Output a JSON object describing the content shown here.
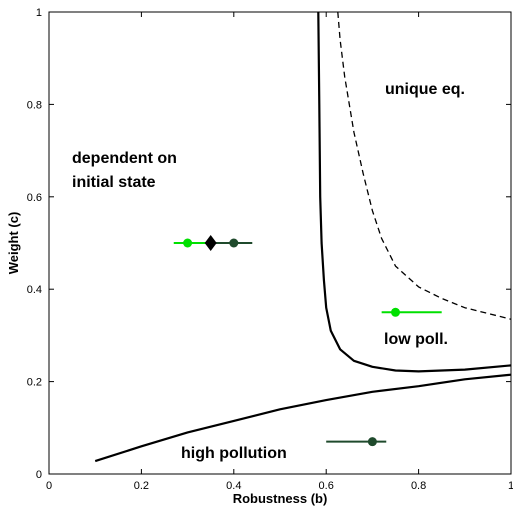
{
  "chart_data": {
    "type": "line",
    "title": "",
    "xlabel": "Robustness (b)",
    "ylabel": "Weight (c)",
    "xlim": [
      0,
      1
    ],
    "ylim": [
      0,
      1
    ],
    "xticks": [
      "0",
      "0.2",
      "0.4",
      "0.6",
      "0.8",
      "1"
    ],
    "yticks": [
      "0",
      "0.2",
      "0.4",
      "0.6",
      "0.8",
      "1"
    ],
    "grid": false,
    "legend": "none",
    "region_labels": [
      {
        "text": "dependent on",
        "x": 0.05,
        "y": 0.62
      },
      {
        "text": "initial state",
        "x": 0.05,
        "y": 0.62
      },
      {
        "text": "unique eq.",
        "x": 0.73,
        "y": 0.82
      },
      {
        "text": "low poll.",
        "x": 0.72,
        "y": 0.28
      },
      {
        "text": "high pollution",
        "x": 0.29,
        "y": 0.04
      }
    ],
    "boundaries": [
      {
        "style": "solid",
        "x": [
          0.583,
          0.585,
          0.587,
          0.59,
          0.595,
          0.6,
          0.61,
          0.63,
          0.66,
          0.7,
          0.75,
          0.8,
          0.9,
          1.0
        ],
        "y": [
          1.0,
          0.8,
          0.6,
          0.5,
          0.42,
          0.36,
          0.31,
          0.27,
          0.245,
          0.232,
          0.224,
          0.222,
          0.226,
          0.235
        ]
      },
      {
        "style": "dashed",
        "x": [
          0.625,
          0.63,
          0.64,
          0.66,
          0.68,
          0.7,
          0.72,
          0.75,
          0.8,
          0.85,
          0.9,
          1.0
        ],
        "y": [
          1.0,
          0.94,
          0.86,
          0.74,
          0.65,
          0.57,
          0.51,
          0.45,
          0.405,
          0.38,
          0.36,
          0.335
        ]
      },
      {
        "style": "solid",
        "x": [
          0.1,
          0.2,
          0.3,
          0.4,
          0.5,
          0.6,
          0.7,
          0.8,
          0.9,
          1.0
        ],
        "y": [
          0.028,
          0.06,
          0.09,
          0.115,
          0.14,
          0.16,
          0.178,
          0.19,
          0.205,
          0.215
        ]
      }
    ],
    "points": [
      {
        "x": 0.3,
        "y": 0.5,
        "xerr": [
          0.27,
          0.35
        ],
        "color": "#00e000",
        "marker": "circle"
      },
      {
        "x": 0.4,
        "y": 0.5,
        "xerr": [
          0.35,
          0.44
        ],
        "color": "#1f4a2c",
        "marker": "circle"
      },
      {
        "x": 0.35,
        "y": 0.5,
        "xerr": null,
        "color": "#000000",
        "marker": "diamond"
      },
      {
        "x": 0.75,
        "y": 0.35,
        "xerr": [
          0.72,
          0.85
        ],
        "color": "#00e000",
        "marker": "circle"
      },
      {
        "x": 0.7,
        "y": 0.07,
        "xerr": [
          0.6,
          0.73
        ],
        "color": "#1f4a2c",
        "marker": "circle"
      }
    ]
  }
}
